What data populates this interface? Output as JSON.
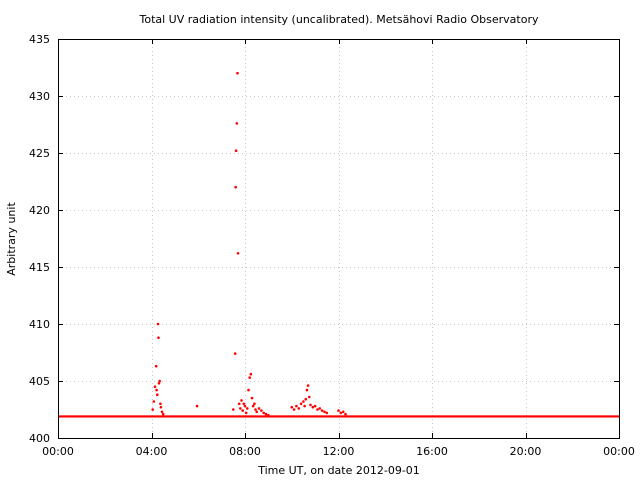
{
  "chart_data": {
    "type": "scatter",
    "title": "Total UV radiation intensity (uncalibrated). Metsähovi Radio Observatory",
    "xlabel": "Time UT, on date 2012-09-01",
    "ylabel": "Arbitrary unit",
    "x_unit": "hours",
    "xlim": [
      0,
      24
    ],
    "ylim": [
      400,
      435
    ],
    "x_ticks": [
      {
        "value": 0,
        "label": "00:00"
      },
      {
        "value": 4,
        "label": "04:00"
      },
      {
        "value": 8,
        "label": "08:00"
      },
      {
        "value": 12,
        "label": "12:00"
      },
      {
        "value": 16,
        "label": "16:00"
      },
      {
        "value": 20,
        "label": "20:00"
      },
      {
        "value": 24,
        "label": "00:00"
      }
    ],
    "y_ticks": [
      400,
      405,
      410,
      415,
      420,
      425,
      430,
      435
    ],
    "grid": true,
    "marker_color": "#ff0000",
    "baseline_value": 401.9,
    "series": [
      {
        "x": [
          4.05,
          4.1,
          4.15,
          4.2,
          4.22,
          4.25,
          4.28,
          4.3,
          4.32,
          4.35,
          4.38,
          4.4,
          4.45,
          4.5,
          5.95,
          7.5,
          7.58,
          7.6,
          7.62,
          7.65,
          7.68,
          7.7,
          7.75,
          7.8,
          7.85,
          7.9,
          7.95,
          8.0,
          8.05,
          8.1,
          8.15,
          8.2,
          8.25,
          8.3,
          8.35,
          8.4,
          8.45,
          8.5,
          8.6,
          8.7,
          8.8,
          8.9,
          9.0,
          10.0,
          10.1,
          10.2,
          10.3,
          10.4,
          10.5,
          10.55,
          10.6,
          10.65,
          10.7,
          10.75,
          10.8,
          10.9,
          11.0,
          11.1,
          11.2,
          11.3,
          11.4,
          11.5,
          12.0,
          12.1,
          12.2,
          12.3
        ],
        "y": [
          402.5,
          403.2,
          404.5,
          406.3,
          404.2,
          403.8,
          410.0,
          408.8,
          404.8,
          405.0,
          403.0,
          402.7,
          402.3,
          402.1,
          402.8,
          402.5,
          407.4,
          422.0,
          425.2,
          427.6,
          432.0,
          416.2,
          403.0,
          402.6,
          403.3,
          402.4,
          403.0,
          402.8,
          402.2,
          402.6,
          404.2,
          405.3,
          405.6,
          403.5,
          402.8,
          403.0,
          402.5,
          402.3,
          402.6,
          402.4,
          402.2,
          402.1,
          402.0,
          402.7,
          402.5,
          402.8,
          402.6,
          403.0,
          403.2,
          402.8,
          403.4,
          404.2,
          404.6,
          403.6,
          402.9,
          402.7,
          402.8,
          402.5,
          402.6,
          402.4,
          402.3,
          402.2,
          402.4,
          402.2,
          402.3,
          402.1
        ]
      }
    ]
  }
}
